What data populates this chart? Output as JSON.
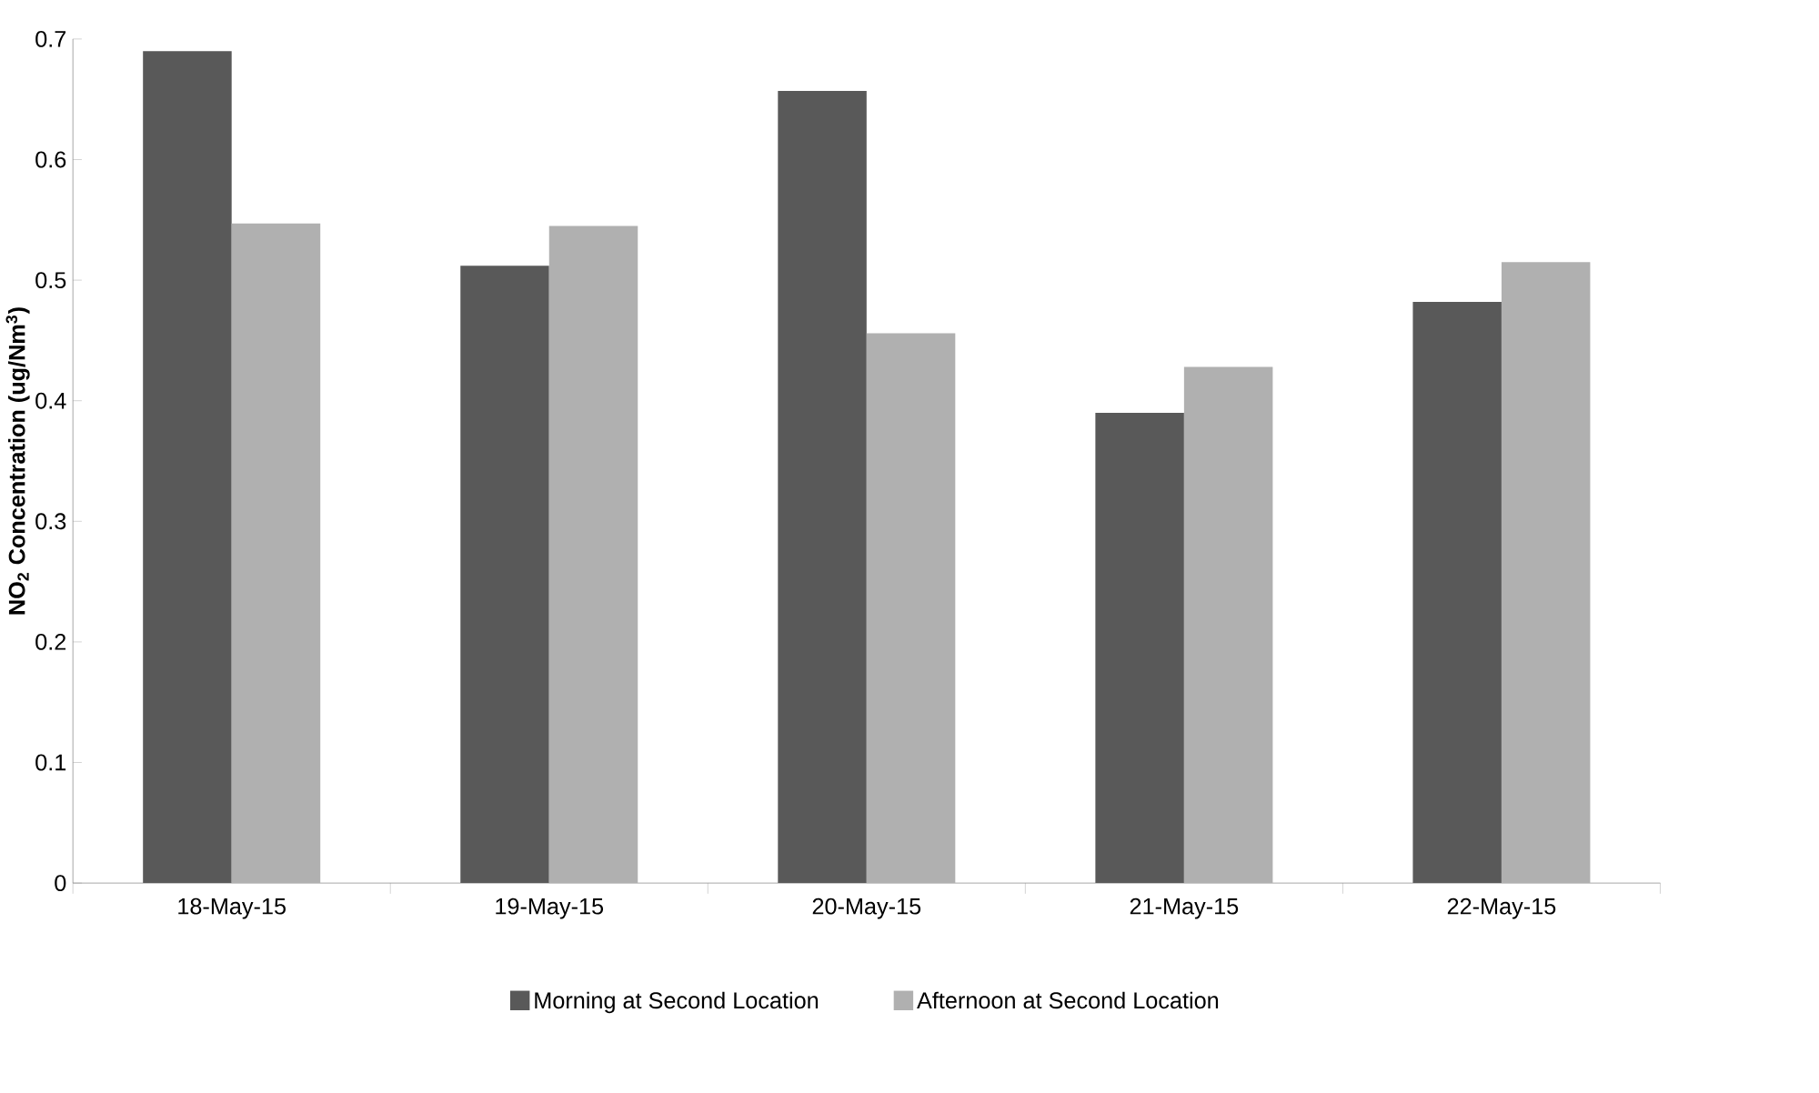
{
  "chart_data": {
    "type": "bar",
    "ylabel": "NO$_{2}$ Concentration (ug/Nm$^{3}$)",
    "categories": [
      "18-May-15",
      "19-May-15",
      "20-May-15",
      "21-May-15",
      "22-May-15"
    ],
    "series": [
      {
        "name": "Morning at Second Location",
        "color": "#595959",
        "values": [
          0.69,
          0.512,
          0.657,
          0.39,
          0.482
        ]
      },
      {
        "name": "Afternoon at Second Location",
        "color": "#b0b0b0",
        "values": [
          0.547,
          0.545,
          0.456,
          0.428,
          0.515
        ]
      }
    ],
    "ylim": [
      0,
      0.7
    ],
    "yticks": [
      0,
      0.1,
      0.2,
      0.3,
      0.4,
      0.5,
      0.6,
      0.7
    ],
    "grid": false,
    "legend": "bottom"
  }
}
